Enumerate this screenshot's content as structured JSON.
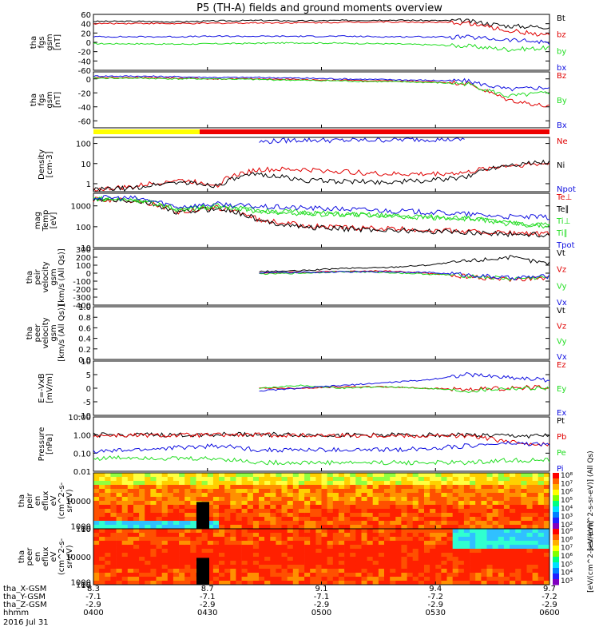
{
  "title": "P5 (TH-A) fields and ground moments overview",
  "colors": {
    "black": "#000000",
    "red": "#e00000",
    "green": "#22dd22",
    "blue": "#1010e0",
    "yellow": "#ffff00",
    "red_bar": "#ee0000",
    "bg": "#ffffff"
  },
  "time_axis": {
    "ticks": [
      "0400",
      "0430",
      "0500",
      "0530",
      "0600"
    ],
    "row_labels": [
      "tha_X-GSM",
      "tha_Y-GSM",
      "tha_Z-GSM",
      "hhmm"
    ],
    "x_values": [
      "8.3",
      "8.7",
      "9.1",
      "9.4",
      "9.7"
    ],
    "y_values": [
      "-7.1",
      "-7.1",
      "-7.1",
      "-7.2",
      "-7.2"
    ],
    "z_values": [
      "-2.9",
      "-2.9",
      "-2.9",
      "-2.9",
      "-2.9"
    ],
    "date": "2016 Jul 31"
  },
  "chart_data": [
    {
      "type": "line",
      "ylabel": "tha\nfgs\ngsm\n[nT]",
      "yticks": [
        "60",
        "40",
        "20",
        "0",
        "-20",
        "-40",
        "-60"
      ],
      "ylim": [
        -60,
        60
      ],
      "series": [
        {
          "name": "Bt",
          "color": "black",
          "values": [
            45,
            45,
            44,
            46,
            47,
            46,
            47,
            48,
            47,
            46,
            35,
            33
          ]
        },
        {
          "name": "bz",
          "color": "red",
          "values": [
            40,
            41,
            40,
            41,
            42,
            42,
            43,
            44,
            43,
            42,
            25,
            15
          ]
        },
        {
          "name": "by",
          "color": "green",
          "values": [
            -3,
            -3,
            -4,
            -3,
            -2,
            -1,
            -2,
            -3,
            -5,
            -8,
            -15,
            -12
          ]
        },
        {
          "name": "bx",
          "color": "blue",
          "values": [
            12,
            12,
            12,
            13,
            13,
            13,
            13,
            12,
            12,
            11,
            5,
            0
          ]
        }
      ]
    },
    {
      "type": "line",
      "ylabel": "tha\nfgs\ngsm\n[nT]",
      "yticks": [
        "0",
        "-20",
        "-40",
        "-60"
      ],
      "ylim": [
        -70,
        10
      ],
      "series": [
        {
          "name": "Bz",
          "color": "red",
          "values": [
            2,
            2,
            1,
            0,
            0,
            -1,
            -2,
            -3,
            -4,
            -6,
            -30,
            -40
          ]
        },
        {
          "name": "By",
          "color": "green",
          "values": [
            1,
            1,
            0,
            0,
            -1,
            -2,
            -3,
            -4,
            -5,
            -7,
            -25,
            -20
          ]
        },
        {
          "name": "Bx",
          "color": "blue",
          "values": [
            4,
            4,
            3,
            2,
            2,
            1,
            0,
            -1,
            -2,
            -3,
            -15,
            -12
          ]
        }
      ]
    },
    {
      "type": "line",
      "ylabel": "Density\n[cm-3]",
      "yscale": "log",
      "yticks": [
        "100",
        "10",
        "1"
      ],
      "ylim": [
        0.4,
        200
      ],
      "series": [
        {
          "name": "Ne",
          "color": "red",
          "values": [
            0.5,
            0.7,
            1.5,
            0.9,
            5,
            5,
            4,
            3,
            3,
            3.5,
            8,
            10
          ]
        },
        {
          "name": "Ni",
          "color": "black",
          "values": [
            0.5,
            0.6,
            1.2,
            0.8,
            3,
            1.5,
            1.3,
            1.2,
            1.4,
            2,
            9,
            12
          ]
        },
        {
          "name": "Npot",
          "color": "blue",
          "values": [
            null,
            null,
            null,
            null,
            120,
            150,
            140,
            150,
            160,
            160,
            null,
            null
          ]
        }
      ]
    },
    {
      "type": "line",
      "ylabel": "mag\nTemp\n[eV]",
      "yscale": "log",
      "yticks": [
        "1000",
        "100",
        "10"
      ],
      "ylim": [
        10,
        4000
      ],
      "series": [
        {
          "name": "Te⊥",
          "color": "red",
          "values": [
            2000,
            1800,
            500,
            800,
            200,
            120,
            90,
            80,
            70,
            60,
            50,
            45
          ]
        },
        {
          "name": "Te∥",
          "color": "black",
          "values": [
            1900,
            1700,
            450,
            750,
            180,
            100,
            80,
            70,
            60,
            55,
            45,
            40
          ]
        },
        {
          "name": "Ti⊥",
          "color": "green",
          "values": [
            2200,
            2000,
            700,
            1000,
            600,
            500,
            400,
            350,
            300,
            250,
            150,
            120
          ]
        },
        {
          "name": "Ti∥",
          "color": "green",
          "values": [
            2100,
            1900,
            650,
            950,
            550,
            450,
            380,
            330,
            280,
            240,
            140,
            110
          ]
        },
        {
          "name": "Tpot",
          "color": "blue",
          "values": [
            2500,
            2300,
            900,
            1200,
            900,
            800,
            700,
            600,
            500,
            400,
            300,
            280
          ]
        }
      ]
    },
    {
      "type": "line",
      "ylabel": "tha\npeir\nvelocity\ngsm\n[km/s (All Qs)]",
      "yticks": [
        "300",
        "200",
        "100",
        "0",
        "-100",
        "-200",
        "-300",
        "-400"
      ],
      "ylim": [
        -400,
        300
      ],
      "series": [
        {
          "name": "Vt",
          "color": "black",
          "values": [
            null,
            null,
            null,
            null,
            20,
            30,
            60,
            70,
            100,
            150,
            200,
            120
          ]
        },
        {
          "name": "Vz",
          "color": "red",
          "values": [
            null,
            null,
            null,
            null,
            0,
            10,
            20,
            30,
            0,
            -40,
            -80,
            -60
          ]
        },
        {
          "name": "Vy",
          "color": "green",
          "values": [
            null,
            null,
            null,
            null,
            -10,
            0,
            20,
            10,
            -10,
            -30,
            -70,
            -50
          ]
        },
        {
          "name": "Vx",
          "color": "blue",
          "values": [
            null,
            null,
            null,
            null,
            5,
            10,
            15,
            20,
            10,
            -20,
            -60,
            -40
          ]
        }
      ]
    },
    {
      "type": "line",
      "ylabel": "tha\npeer\nvelocity\ngsm\n[km/s (All Qs)]",
      "yticks": [
        "1.0",
        "0.8",
        "0.6",
        "0.4",
        "0.2",
        "0.0"
      ],
      "ylim": [
        0,
        1
      ],
      "series": [
        {
          "name": "Vt",
          "color": "black",
          "values": []
        },
        {
          "name": "Vz",
          "color": "red",
          "values": []
        },
        {
          "name": "Vy",
          "color": "green",
          "values": []
        },
        {
          "name": "Vx",
          "color": "blue",
          "values": []
        }
      ]
    },
    {
      "type": "line",
      "ylabel": "E=-VxB\n[mV/m]",
      "yticks": [
        "10",
        "5",
        "0",
        "-5",
        "-10"
      ],
      "ylim": [
        -10,
        10
      ],
      "series": [
        {
          "name": "Ez",
          "color": "red",
          "values": [
            null,
            null,
            null,
            null,
            0,
            0,
            0.5,
            0.5,
            0,
            -0.5,
            0,
            0.5
          ]
        },
        {
          "name": "Ey",
          "color": "green",
          "values": [
            null,
            null,
            null,
            null,
            0,
            1,
            0,
            0.5,
            0,
            -1,
            0,
            0
          ]
        },
        {
          "name": "Ex",
          "color": "blue",
          "values": [
            null,
            null,
            null,
            null,
            -1,
            0,
            1,
            2,
            3,
            5,
            4,
            3
          ]
        }
      ]
    },
    {
      "type": "line",
      "ylabel": "Pressure\n[nPa]",
      "yscale": "log",
      "yticks": [
        "10.00",
        "1.00",
        "0.10",
        "0.01"
      ],
      "ylim": [
        0.01,
        10
      ],
      "series": [
        {
          "name": "Pt",
          "color": "black",
          "values": [
            1,
            1,
            1,
            1.1,
            1.1,
            1,
            1,
            1,
            1,
            1,
            0.9,
            0.9
          ]
        },
        {
          "name": "Pb",
          "color": "red",
          "values": [
            0.95,
            0.95,
            0.95,
            1,
            1,
            0.95,
            0.95,
            0.95,
            0.9,
            0.9,
            0.4,
            0.3
          ]
        },
        {
          "name": "Pe",
          "color": "green",
          "values": [
            0.05,
            0.06,
            0.05,
            0.05,
            0.03,
            0.03,
            0.03,
            0.03,
            0.03,
            0.03,
            0.04,
            0.04
          ]
        },
        {
          "name": "Pi",
          "color": "blue",
          "values": [
            0.12,
            0.15,
            0.2,
            0.25,
            0.15,
            0.15,
            0.15,
            0.15,
            0.18,
            0.25,
            0.35,
            0.3
          ]
        }
      ]
    },
    {
      "type": "heatmap",
      "ylabel": "tha\npeir\nen\neflux\neV\n(cm^2-s-\nsr-eV)",
      "yticks": [
        "10000",
        "1000",
        "100",
        "10"
      ],
      "ylim": [
        5,
        20000
      ]
    },
    {
      "type": "heatmap",
      "ylabel": "tha\npeer\nen\neflux\neV\n(cm^2-s-\nsr-eV)",
      "yticks": [
        "10000",
        "1000",
        "100",
        "10"
      ],
      "ylim": [
        5,
        20000
      ]
    }
  ],
  "colorbars": [
    {
      "label": "[eV/(cm^2-s-sr-eV)] (All Qs)",
      "ticks": [
        "10⁸",
        "10⁷",
        "10⁶",
        "10⁵",
        "10⁴",
        "10³",
        "10²"
      ]
    },
    {
      "label": "[eV/(cm^2-s-sr-eV)]",
      "ticks": [
        "10⁹",
        "10⁸",
        "10⁷",
        "10⁶",
        "10⁵",
        "10⁴",
        "10³"
      ]
    }
  ]
}
